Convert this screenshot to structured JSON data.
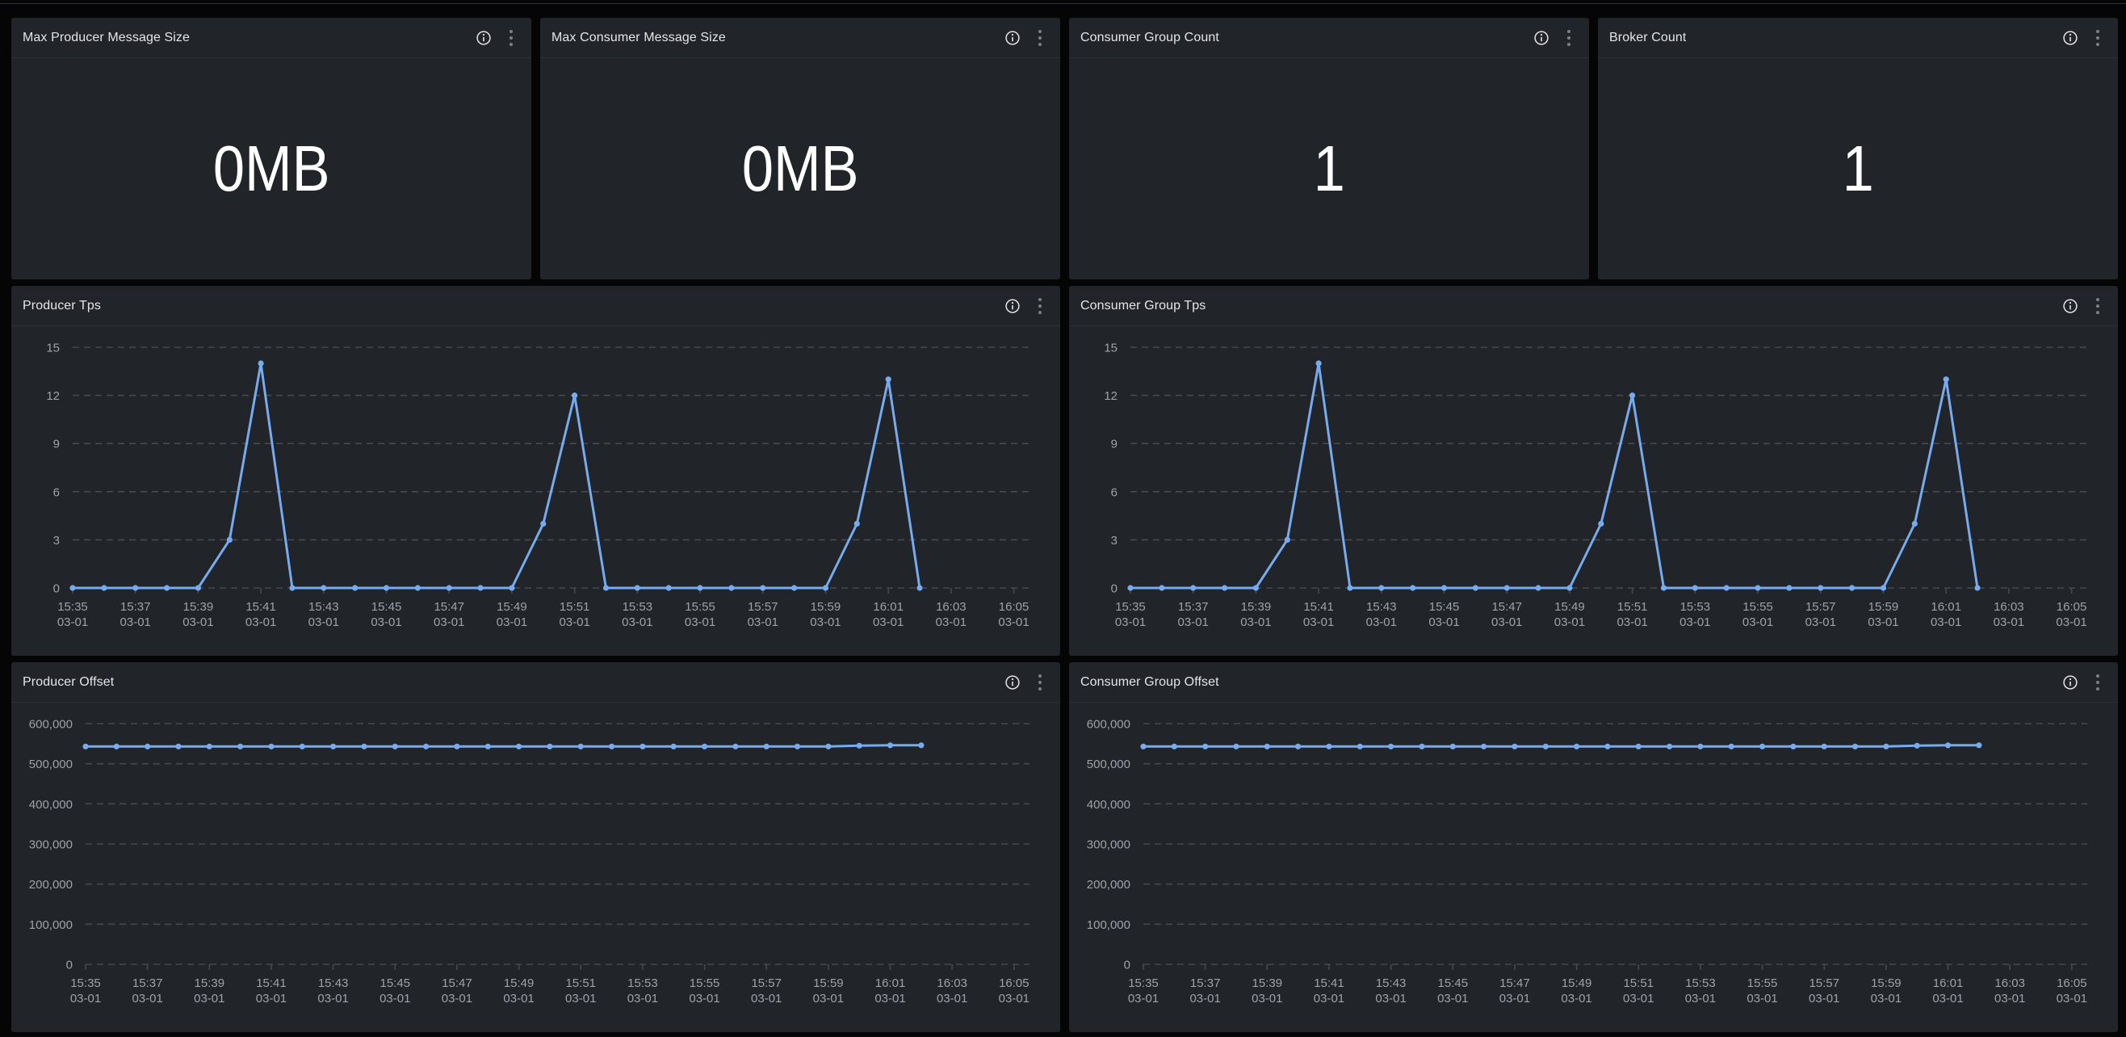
{
  "page": {
    "background": "#050506",
    "top_border_color": "#2e3237",
    "panel_background": "#212428",
    "accent_line_color": "#76abf0",
    "axis_text_color": "#9da3ab",
    "grid_color": "#46494f",
    "title_color": "#e4e5e7",
    "stat_value_color": "#ffffff"
  },
  "panels": {
    "stats": [
      {
        "title": "Max Producer Message Size",
        "value": "0MB"
      },
      {
        "title": "Max Consumer Message Size",
        "value": "0MB"
      },
      {
        "title": "Consumer Group Count",
        "value": "1"
      },
      {
        "title": "Broker Count",
        "value": "1"
      }
    ],
    "charts": [
      {
        "title": "Producer Tps"
      },
      {
        "title": "Consumer Group Tps"
      },
      {
        "title": "Producer Offset"
      },
      {
        "title": "Consumer Group Offset"
      }
    ]
  },
  "chart_data": [
    {
      "title": "Producer Tps",
      "type": "line",
      "x": [
        "15:35",
        "15:36",
        "15:37",
        "15:38",
        "15:39",
        "15:40",
        "15:41",
        "15:42",
        "15:43",
        "15:44",
        "15:45",
        "15:46",
        "15:47",
        "15:48",
        "15:49",
        "15:50",
        "15:51",
        "15:52",
        "15:53",
        "15:54",
        "15:55",
        "15:56",
        "15:57",
        "15:58",
        "15:59",
        "16:00",
        "16:01",
        "16:02"
      ],
      "values": [
        0,
        0,
        0,
        0,
        0,
        3,
        14,
        0,
        0,
        0,
        0,
        0,
        0,
        0,
        0,
        4,
        12,
        0,
        0,
        0,
        0,
        0,
        0,
        0,
        0,
        4,
        13,
        0
      ],
      "x_tick_labels": [
        "15:35",
        "15:37",
        "15:39",
        "15:41",
        "15:43",
        "15:45",
        "15:47",
        "15:49",
        "15:51",
        "15:53",
        "15:55",
        "15:57",
        "15:59",
        "16:01",
        "16:03",
        "16:05"
      ],
      "x_tick_date": "03-01",
      "yticks": [
        0,
        3,
        6,
        9,
        12,
        15
      ],
      "ytick_labels": [
        "0",
        "3",
        "6",
        "9",
        "12",
        "15"
      ],
      "ylim": [
        0,
        15
      ],
      "xlim_minutes": [
        0,
        30.5
      ],
      "grid": "dashed-horizontal",
      "legend": "none",
      "line_color": "#76abf0",
      "layout": {
        "plot_left": 76,
        "plot_right_pad": 38,
        "plot_top": 26,
        "xaxis_height": 84
      }
    },
    {
      "title": "Consumer Group Tps",
      "type": "line",
      "x": [
        "15:35",
        "15:36",
        "15:37",
        "15:38",
        "15:39",
        "15:40",
        "15:41",
        "15:42",
        "15:43",
        "15:44",
        "15:45",
        "15:46",
        "15:47",
        "15:48",
        "15:49",
        "15:50",
        "15:51",
        "15:52",
        "15:53",
        "15:54",
        "15:55",
        "15:56",
        "15:57",
        "15:58",
        "15:59",
        "16:00",
        "16:01",
        "16:02"
      ],
      "values": [
        0,
        0,
        0,
        0,
        0,
        3,
        14,
        0,
        0,
        0,
        0,
        0,
        0,
        0,
        0,
        4,
        12,
        0,
        0,
        0,
        0,
        0,
        0,
        0,
        0,
        4,
        13,
        0
      ],
      "x_tick_labels": [
        "15:35",
        "15:37",
        "15:39",
        "15:41",
        "15:43",
        "15:45",
        "15:47",
        "15:49",
        "15:51",
        "15:53",
        "15:55",
        "15:57",
        "15:59",
        "16:01",
        "16:03",
        "16:05"
      ],
      "x_tick_date": "03-01",
      "yticks": [
        0,
        3,
        6,
        9,
        12,
        15
      ],
      "ytick_labels": [
        "0",
        "3",
        "6",
        "9",
        "12",
        "15"
      ],
      "ylim": [
        0,
        15
      ],
      "xlim_minutes": [
        0,
        30.5
      ],
      "grid": "dashed-horizontal",
      "legend": "none",
      "line_color": "#76abf0",
      "layout": {
        "plot_left": 76,
        "plot_right_pad": 38,
        "plot_top": 26,
        "xaxis_height": 84
      }
    },
    {
      "title": "Producer Offset",
      "type": "line",
      "x": [
        "15:35",
        "15:36",
        "15:37",
        "15:38",
        "15:39",
        "15:40",
        "15:41",
        "15:42",
        "15:43",
        "15:44",
        "15:45",
        "15:46",
        "15:47",
        "15:48",
        "15:49",
        "15:50",
        "15:51",
        "15:52",
        "15:53",
        "15:54",
        "15:55",
        "15:56",
        "15:57",
        "15:58",
        "15:59",
        "16:00",
        "16:01",
        "16:02"
      ],
      "values": [
        543000,
        543000,
        543000,
        543000,
        543000,
        543000,
        543000,
        543000,
        543000,
        543000,
        543000,
        543000,
        543000,
        543000,
        543000,
        543000,
        543000,
        543000,
        543000,
        543000,
        543000,
        543000,
        543000,
        543000,
        543000,
        545000,
        546000,
        546000
      ],
      "x_tick_labels": [
        "15:35",
        "15:37",
        "15:39",
        "15:41",
        "15:43",
        "15:45",
        "15:47",
        "15:49",
        "15:51",
        "15:53",
        "15:55",
        "15:57",
        "15:59",
        "16:01",
        "16:03",
        "16:05"
      ],
      "x_tick_date": "03-01",
      "yticks": [
        0,
        100000,
        200000,
        300000,
        400000,
        500000,
        600000
      ],
      "ytick_labels": [
        "0",
        "100,000",
        "200,000",
        "300,000",
        "400,000",
        "500,000",
        "600,000"
      ],
      "ylim": [
        0,
        600000
      ],
      "xlim_minutes": [
        0,
        30.5
      ],
      "grid": "dashed-horizontal",
      "legend": "none",
      "line_color": "#76abf0",
      "layout": {
        "plot_left": 92,
        "plot_right_pad": 38,
        "plot_top": 26,
        "xaxis_height": 84
      }
    },
    {
      "title": "Consumer Group Offset",
      "type": "line",
      "x": [
        "15:35",
        "15:36",
        "15:37",
        "15:38",
        "15:39",
        "15:40",
        "15:41",
        "15:42",
        "15:43",
        "15:44",
        "15:45",
        "15:46",
        "15:47",
        "15:48",
        "15:49",
        "15:50",
        "15:51",
        "15:52",
        "15:53",
        "15:54",
        "15:55",
        "15:56",
        "15:57",
        "15:58",
        "15:59",
        "16:00",
        "16:01",
        "16:02"
      ],
      "values": [
        543000,
        543000,
        543000,
        543000,
        543000,
        543000,
        543000,
        543000,
        543000,
        543000,
        543000,
        543000,
        543000,
        543000,
        543000,
        543000,
        543000,
        543000,
        543000,
        543000,
        543000,
        543000,
        543000,
        543000,
        543000,
        545000,
        546000,
        546000
      ],
      "x_tick_labels": [
        "15:35",
        "15:37",
        "15:39",
        "15:41",
        "15:43",
        "15:45",
        "15:47",
        "15:49",
        "15:51",
        "15:53",
        "15:55",
        "15:57",
        "15:59",
        "16:01",
        "16:03",
        "16:05"
      ],
      "x_tick_date": "03-01",
      "yticks": [
        0,
        100000,
        200000,
        300000,
        400000,
        500000,
        600000
      ],
      "ytick_labels": [
        "0",
        "100,000",
        "200,000",
        "300,000",
        "400,000",
        "500,000",
        "600,000"
      ],
      "ylim": [
        0,
        600000
      ],
      "xlim_minutes": [
        0,
        30.5
      ],
      "grid": "dashed-horizontal",
      "legend": "none",
      "line_color": "#76abf0",
      "layout": {
        "plot_left": 92,
        "plot_right_pad": 38,
        "plot_top": 26,
        "xaxis_height": 84
      }
    }
  ],
  "icons": {
    "info": "info-icon",
    "menu": "kebab-menu-icon"
  }
}
